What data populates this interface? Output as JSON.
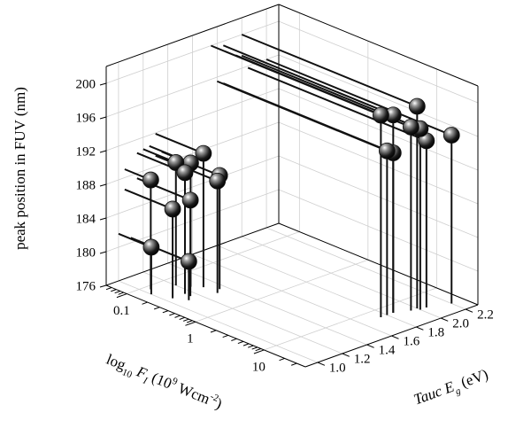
{
  "chart_data": {
    "type": "scatter3d",
    "zlabel": "peak position in FUV (nm)",
    "xlabel": [
      "log",
      "10",
      " F",
      "I",
      " (10",
      "9",
      " Wcm",
      "-2",
      ")"
    ],
    "ylabel": [
      "Tauc E",
      "g",
      " (eV)"
    ],
    "xscale": "log",
    "xlim": [
      0.05,
      40
    ],
    "xticks": [
      0.1,
      1,
      10
    ],
    "xminorticks": [
      0.06,
      0.07,
      0.08,
      0.09,
      0.2,
      0.3,
      0.4,
      0.5,
      0.6,
      0.7,
      0.8,
      0.9,
      2,
      3,
      4,
      5,
      6,
      7,
      8,
      9,
      20,
      30
    ],
    "ylim": [
      0.9,
      2.3
    ],
    "yticks": [
      {
        "value": 1.0,
        "label": "1.0"
      },
      1.2,
      1.4,
      1.6,
      1.8,
      {
        "value": 2.0,
        "label": "2.0"
      },
      2.2
    ],
    "zlim": [
      176,
      202
    ],
    "zticks": [
      176,
      180,
      184,
      188,
      192,
      196,
      200
    ],
    "grid": true,
    "color": "#111111",
    "x": [
      0.25,
      0.15,
      0.2,
      0.25,
      0.35,
      0.4,
      0.12,
      0.3,
      0.25,
      0.15,
      0.35,
      15,
      15,
      18,
      18,
      20,
      15,
      15,
      20,
      25
    ],
    "y": [
      1.3,
      1.2,
      1.25,
      1.15,
      1.35,
      1.3,
      1.05,
      1.15,
      1.05,
      1.0,
      1.1,
      1.75,
      1.85,
      2.0,
      1.95,
      2.0,
      1.8,
      1.85,
      2.05,
      2.2
    ],
    "z": [
      191.9,
      190.6,
      190.7,
      190.4,
      189.5,
      189.3,
      189.0,
      187.4,
      186.6,
      181.6,
      180.6,
      200.0,
      199.5,
      200.0,
      197.8,
      197.5,
      195.5,
      195.0,
      195.8,
      196.0
    ]
  }
}
